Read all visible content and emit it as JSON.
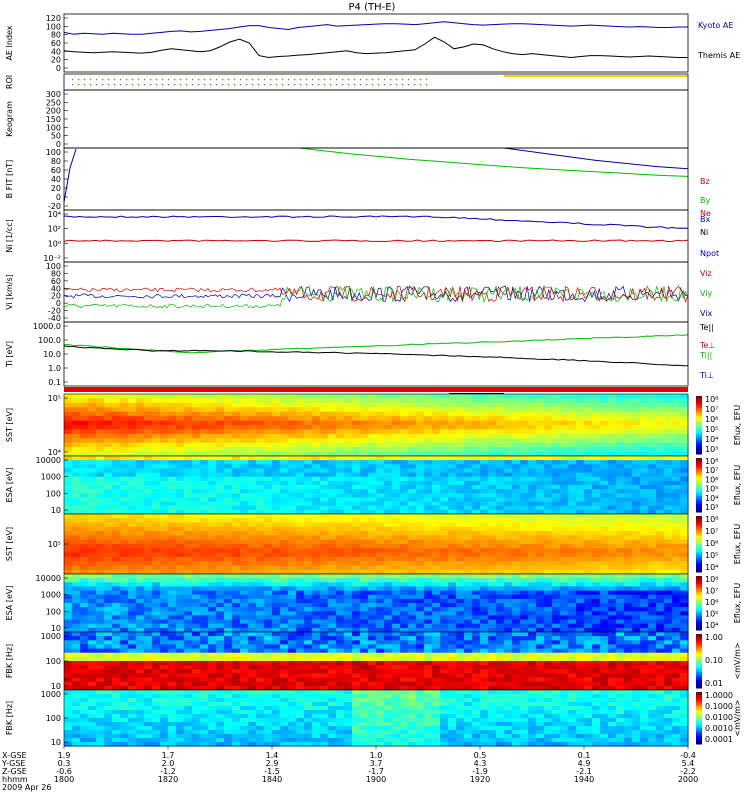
{
  "title": "P4 (TH-E)",
  "chart_data": [
    {
      "type": "line",
      "panel": "ae",
      "ylabel": "AE Index",
      "ylim": [
        0,
        120
      ],
      "yticks": [
        "120",
        "100",
        "80",
        "60",
        "40",
        "20",
        "0"
      ],
      "series": [
        {
          "name": "Kyoto AE",
          "color": "#0000aa",
          "values": [
            82,
            78,
            80,
            79,
            78,
            80,
            79,
            78,
            78,
            80,
            82,
            84,
            85,
            83,
            84,
            86,
            88,
            90,
            93,
            96,
            96,
            92,
            90,
            88,
            92,
            94,
            96,
            98,
            95,
            96,
            97,
            98,
            99,
            100,
            100,
            99,
            98,
            100,
            102,
            104,
            102,
            100,
            98,
            97,
            98,
            99,
            100,
            100,
            99,
            98,
            97,
            96,
            95,
            96,
            97,
            96,
            95,
            94,
            93,
            94,
            93,
            92,
            92,
            93,
            93
          ]
        },
        {
          "name": "Themis AE",
          "color": "#000000",
          "values": [
            44,
            42,
            41,
            40,
            41,
            42,
            41,
            40,
            39,
            41,
            45,
            48,
            46,
            44,
            42,
            44,
            52,
            62,
            68,
            60,
            34,
            30,
            32,
            33,
            35,
            36,
            38,
            40,
            42,
            44,
            40,
            38,
            39,
            40,
            42,
            44,
            46,
            58,
            72,
            62,
            48,
            52,
            58,
            56,
            48,
            42,
            38,
            36,
            38,
            36,
            34,
            32,
            30,
            32,
            34,
            34,
            33,
            32,
            31,
            32,
            33,
            32,
            31,
            30,
            30
          ]
        }
      ]
    },
    {
      "type": "scatter",
      "panel": "roi",
      "ylabel": "ROI",
      "ylim": [
        0,
        1
      ]
    },
    {
      "type": "line",
      "panel": "keogram",
      "ylabel": "Keogram",
      "ylim": [
        0,
        300
      ],
      "yticks": [
        "300",
        "250",
        "200",
        "150",
        "100",
        "50",
        "0"
      ]
    },
    {
      "type": "line",
      "panel": "bfit",
      "ylabel": "B FIT [nT]",
      "ylim": [
        -20,
        100
      ],
      "yticks": [
        "100",
        "80",
        "60",
        "40",
        "20",
        "0",
        "-20"
      ],
      "series": [
        {
          "name": "Bz",
          "color": "#cc0000",
          "values": []
        },
        {
          "name": "By",
          "color": "#00bb00",
          "values": [
            100,
            94,
            88,
            83,
            78,
            74,
            70,
            66,
            62,
            59,
            56,
            53,
            50,
            47,
            45
          ]
        },
        {
          "name": "Bx",
          "color": "#0000aa",
          "values": [
            100,
            92,
            84,
            76,
            70,
            64,
            60
          ]
        }
      ]
    },
    {
      "type": "line",
      "panel": "ni",
      "ylabel": "Ni [1/cc]",
      "log": true,
      "yticks": [
        "10⁴",
        "10²",
        "10⁰",
        "10⁻²"
      ],
      "series": [
        {
          "name": "Ne",
          "color": "#cc0000",
          "values": []
        },
        {
          "name": "Ni",
          "color": "#000000",
          "values": []
        },
        {
          "name": "Npot",
          "color": "#0000aa",
          "values": []
        }
      ]
    },
    {
      "type": "line",
      "panel": "vi",
      "ylabel": "Vi [km/s]",
      "ylim": [
        -50,
        110
      ],
      "yticks": [
        "100",
        "80",
        "60",
        "40",
        "20",
        "0",
        "-20",
        "-40"
      ],
      "series": [
        {
          "name": "Viz",
          "color": "#cc0000",
          "values": []
        },
        {
          "name": "Viy",
          "color": "#00bb00",
          "values": []
        },
        {
          "name": "Vix",
          "color": "#0000aa",
          "values": []
        }
      ]
    },
    {
      "type": "line",
      "panel": "ti",
      "ylabel": "Ti [eV]",
      "log": true,
      "yticks": [
        "1000.0",
        "100.0",
        "10.0",
        "1.0",
        "0.1"
      ],
      "series": [
        {
          "name": "Te||",
          "color": "#000000",
          "values": []
        },
        {
          "name": "Te⊥",
          "color": "#cc0000",
          "values": []
        },
        {
          "name": "Ti||",
          "color": "#00bb00",
          "values": []
        },
        {
          "name": "Ti⊥",
          "color": "#0000aa",
          "values": []
        }
      ]
    },
    {
      "type": "heatmap",
      "panel": "sst_e",
      "ylabel": "SST [eV]",
      "cbar_label": "Eflux, EFU",
      "cbar_ticks": [
        "10⁸",
        "10⁷",
        "10⁶",
        "10⁵",
        "10⁴",
        "10³"
      ],
      "yticks": [
        "10⁵",
        "10⁴"
      ]
    },
    {
      "type": "heatmap",
      "panel": "esa_e",
      "ylabel": "ESA [eV]",
      "cbar_label": "Eflux, EFU",
      "cbar_ticks": [
        "10⁸",
        "10⁷",
        "10⁶",
        "10⁵",
        "10⁴",
        "10³"
      ],
      "yticks": [
        "10000",
        "1000",
        "100",
        "10"
      ]
    },
    {
      "type": "heatmap",
      "panel": "sst_i",
      "ylabel": "SST [eV]",
      "cbar_label": "Eflux, EFU",
      "cbar_ticks": [
        "10⁸",
        "10⁷",
        "10⁶",
        "10⁵",
        "10⁴"
      ],
      "yticks": [
        "10⁵"
      ]
    },
    {
      "type": "heatmap",
      "panel": "esa_i",
      "ylabel": "ESA [eV]",
      "cbar_label": "Eflux, EFU",
      "cbar_ticks": [
        "10⁸",
        "10⁷",
        "10⁶",
        "10⁵",
        "10⁴"
      ],
      "yticks": [
        "10000",
        "1000",
        "100",
        "10"
      ]
    },
    {
      "type": "heatmap",
      "panel": "fbk_e",
      "ylabel": "FBK [Hz]",
      "cbar_label": "<mV/m>",
      "cbar_ticks": [
        "1.00",
        "0.10",
        "0.01"
      ],
      "yticks": [
        "1000",
        "100",
        "10"
      ]
    },
    {
      "type": "heatmap",
      "panel": "fbk_b",
      "ylabel": "FBK [Hz]",
      "cbar_label": "<mV/m>",
      "cbar_ticks": [
        "1.0000",
        "0.1000",
        "0.0100",
        "0.0010",
        "0.0001"
      ],
      "yticks": [
        "1000",
        "100",
        "10"
      ]
    }
  ],
  "xaxis": {
    "row_labels": [
      "X-GSE",
      "Y-GSE",
      "Z-GSE",
      "hhmm",
      "2009 Apr 26"
    ],
    "columns": [
      [
        "1.9",
        "0.3",
        "-0.6",
        "1800"
      ],
      [
        "1.7",
        "2.0",
        "-1.2",
        "1820"
      ],
      [
        "1.4",
        "2.9",
        "-1.5",
        "1840"
      ],
      [
        "1.0",
        "3.7",
        "-1.7",
        "1900"
      ],
      [
        "0.5",
        "4.3",
        "-1.9",
        "1920"
      ],
      [
        "0.1",
        "4.9",
        "-2.1",
        "1940"
      ],
      [
        "-0.4",
        "5.4",
        "-2.2",
        "2000"
      ]
    ]
  }
}
